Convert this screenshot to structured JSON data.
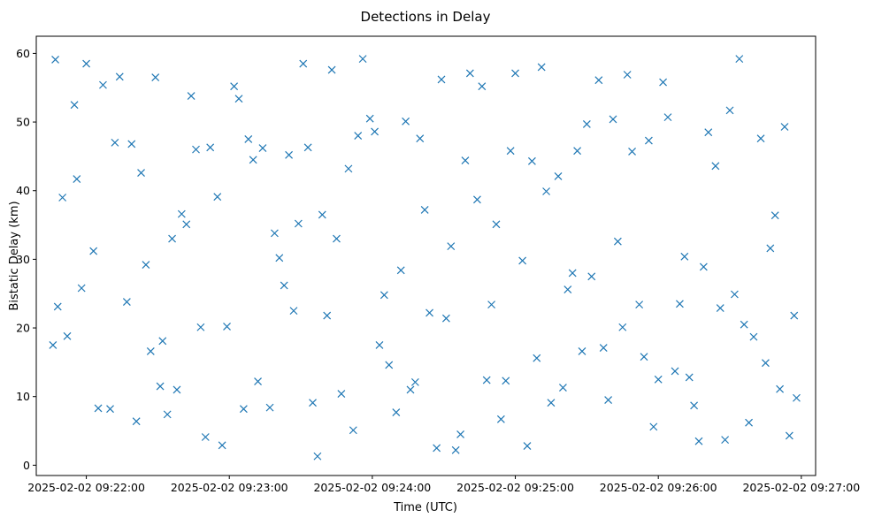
{
  "colors": {
    "marker": "#1f77b4",
    "axes": "#000000",
    "background": "#ffffff"
  },
  "chart_data": {
    "type": "scatter",
    "title": "Detections in Delay",
    "xlabel": "Time (UTC)",
    "ylabel": "Bistatic Delay (km)",
    "marker": "x",
    "grid": false,
    "legend": "none",
    "xlim": [
      "2025-02-02 09:21:39",
      "2025-02-02 09:27:06"
    ],
    "ylim": [
      -1.5,
      62.5
    ],
    "x_ticks": [
      "2025-02-02 09:22:00",
      "2025-02-02 09:23:00",
      "2025-02-02 09:24:00",
      "2025-02-02 09:25:00",
      "2025-02-02 09:26:00",
      "2025-02-02 09:27:00"
    ],
    "y_ticks": [
      0,
      10,
      20,
      30,
      40,
      50,
      60
    ],
    "series": [
      {
        "x": [
          "2025-02-02 09:21:46",
          "2025-02-02 09:21:47",
          "2025-02-02 09:21:48",
          "2025-02-02 09:21:50",
          "2025-02-02 09:21:52",
          "2025-02-02 09:21:55",
          "2025-02-02 09:21:56",
          "2025-02-02 09:21:58",
          "2025-02-02 09:22:00",
          "2025-02-02 09:22:03",
          "2025-02-02 09:22:05",
          "2025-02-02 09:22:07",
          "2025-02-02 09:22:10",
          "2025-02-02 09:22:12",
          "2025-02-02 09:22:14",
          "2025-02-02 09:22:17",
          "2025-02-02 09:22:19",
          "2025-02-02 09:22:21",
          "2025-02-02 09:22:23",
          "2025-02-02 09:22:25",
          "2025-02-02 09:22:27",
          "2025-02-02 09:22:29",
          "2025-02-02 09:22:31",
          "2025-02-02 09:22:32",
          "2025-02-02 09:22:34",
          "2025-02-02 09:22:36",
          "2025-02-02 09:22:38",
          "2025-02-02 09:22:40",
          "2025-02-02 09:22:42",
          "2025-02-02 09:22:44",
          "2025-02-02 09:22:46",
          "2025-02-02 09:22:48",
          "2025-02-02 09:22:50",
          "2025-02-02 09:22:52",
          "2025-02-02 09:22:55",
          "2025-02-02 09:22:57",
          "2025-02-02 09:22:59",
          "2025-02-02 09:23:02",
          "2025-02-02 09:23:04",
          "2025-02-02 09:23:06",
          "2025-02-02 09:23:08",
          "2025-02-02 09:23:10",
          "2025-02-02 09:23:12",
          "2025-02-02 09:23:14",
          "2025-02-02 09:23:17",
          "2025-02-02 09:23:19",
          "2025-02-02 09:23:21",
          "2025-02-02 09:23:23",
          "2025-02-02 09:23:25",
          "2025-02-02 09:23:27",
          "2025-02-02 09:23:29",
          "2025-02-02 09:23:31",
          "2025-02-02 09:23:33",
          "2025-02-02 09:23:35",
          "2025-02-02 09:23:37",
          "2025-02-02 09:23:39",
          "2025-02-02 09:23:41",
          "2025-02-02 09:23:43",
          "2025-02-02 09:23:45",
          "2025-02-02 09:23:47",
          "2025-02-02 09:23:50",
          "2025-02-02 09:23:52",
          "2025-02-02 09:23:54",
          "2025-02-02 09:23:56",
          "2025-02-02 09:23:59",
          "2025-02-02 09:24:01",
          "2025-02-02 09:24:03",
          "2025-02-02 09:24:05",
          "2025-02-02 09:24:07",
          "2025-02-02 09:24:10",
          "2025-02-02 09:24:12",
          "2025-02-02 09:24:14",
          "2025-02-02 09:24:16",
          "2025-02-02 09:24:18",
          "2025-02-02 09:24:20",
          "2025-02-02 09:24:22",
          "2025-02-02 09:24:24",
          "2025-02-02 09:24:27",
          "2025-02-02 09:24:29",
          "2025-02-02 09:24:31",
          "2025-02-02 09:24:33",
          "2025-02-02 09:24:35",
          "2025-02-02 09:24:37",
          "2025-02-02 09:24:39",
          "2025-02-02 09:24:41",
          "2025-02-02 09:24:44",
          "2025-02-02 09:24:46",
          "2025-02-02 09:24:48",
          "2025-02-02 09:24:50",
          "2025-02-02 09:24:52",
          "2025-02-02 09:24:54",
          "2025-02-02 09:24:56",
          "2025-02-02 09:24:58",
          "2025-02-02 09:25:00",
          "2025-02-02 09:25:03",
          "2025-02-02 09:25:05",
          "2025-02-02 09:25:07",
          "2025-02-02 09:25:09",
          "2025-02-02 09:25:11",
          "2025-02-02 09:25:13",
          "2025-02-02 09:25:15",
          "2025-02-02 09:25:18",
          "2025-02-02 09:25:20",
          "2025-02-02 09:25:22",
          "2025-02-02 09:25:24",
          "2025-02-02 09:25:26",
          "2025-02-02 09:25:28",
          "2025-02-02 09:25:30",
          "2025-02-02 09:25:32",
          "2025-02-02 09:25:35",
          "2025-02-02 09:25:37",
          "2025-02-02 09:25:39",
          "2025-02-02 09:25:41",
          "2025-02-02 09:25:43",
          "2025-02-02 09:25:45",
          "2025-02-02 09:25:47",
          "2025-02-02 09:25:49",
          "2025-02-02 09:25:52",
          "2025-02-02 09:25:54",
          "2025-02-02 09:25:56",
          "2025-02-02 09:25:58",
          "2025-02-02 09:26:00",
          "2025-02-02 09:26:02",
          "2025-02-02 09:26:04",
          "2025-02-02 09:26:07",
          "2025-02-02 09:26:09",
          "2025-02-02 09:26:11",
          "2025-02-02 09:26:13",
          "2025-02-02 09:26:15",
          "2025-02-02 09:26:17",
          "2025-02-02 09:26:19",
          "2025-02-02 09:26:21",
          "2025-02-02 09:26:24",
          "2025-02-02 09:26:26",
          "2025-02-02 09:26:28",
          "2025-02-02 09:26:30",
          "2025-02-02 09:26:32",
          "2025-02-02 09:26:34",
          "2025-02-02 09:26:36",
          "2025-02-02 09:26:38",
          "2025-02-02 09:26:40",
          "2025-02-02 09:26:43",
          "2025-02-02 09:26:45",
          "2025-02-02 09:26:47",
          "2025-02-02 09:26:49",
          "2025-02-02 09:26:51",
          "2025-02-02 09:26:53",
          "2025-02-02 09:26:55",
          "2025-02-02 09:26:57",
          "2025-02-02 09:26:58"
        ],
        "y": [
          17.5,
          59.1,
          23.1,
          39.0,
          18.8,
          52.5,
          41.7,
          25.8,
          58.5,
          31.2,
          8.3,
          55.4,
          8.2,
          47.0,
          56.6,
          23.8,
          46.8,
          6.4,
          42.6,
          29.2,
          16.6,
          56.5,
          11.5,
          18.1,
          7.4,
          33.0,
          11.0,
          36.6,
          35.1,
          53.8,
          46.0,
          20.1,
          4.1,
          46.3,
          39.1,
          2.9,
          20.2,
          55.2,
          53.4,
          8.2,
          47.5,
          44.5,
          12.2,
          46.2,
          8.4,
          33.8,
          30.2,
          26.2,
          45.2,
          22.5,
          35.2,
          58.5,
          46.3,
          9.1,
          1.3,
          36.5,
          21.8,
          57.6,
          33.0,
          10.4,
          43.2,
          5.1,
          48.0,
          59.2,
          50.5,
          48.6,
          17.5,
          24.8,
          14.6,
          7.7,
          28.4,
          50.1,
          11.0,
          12.1,
          47.6,
          37.2,
          22.2,
          2.5,
          56.2,
          21.4,
          31.9,
          2.2,
          4.5,
          44.4,
          57.1,
          38.7,
          55.2,
          12.4,
          23.4,
          35.1,
          6.7,
          12.3,
          45.8,
          57.1,
          29.8,
          2.8,
          44.3,
          15.6,
          58.0,
          39.9,
          9.1,
          42.1,
          11.3,
          25.6,
          28.0,
          45.8,
          16.6,
          49.7,
          27.5,
          56.1,
          17.1,
          9.5,
          50.4,
          32.6,
          20.1,
          56.9,
          45.7,
          23.4,
          15.8,
          47.3,
          5.6,
          12.5,
          55.8,
          50.7,
          13.7,
          23.5,
          30.4,
          12.8,
          8.7,
          3.5,
          28.9,
          48.5,
          43.6,
          22.9,
          3.7,
          51.7,
          24.9,
          59.2,
          20.5,
          6.2,
          18.7,
          47.6,
          14.9,
          31.6,
          36.4,
          11.1,
          49.3,
          4.3,
          21.8,
          9.8
        ]
      }
    ]
  }
}
